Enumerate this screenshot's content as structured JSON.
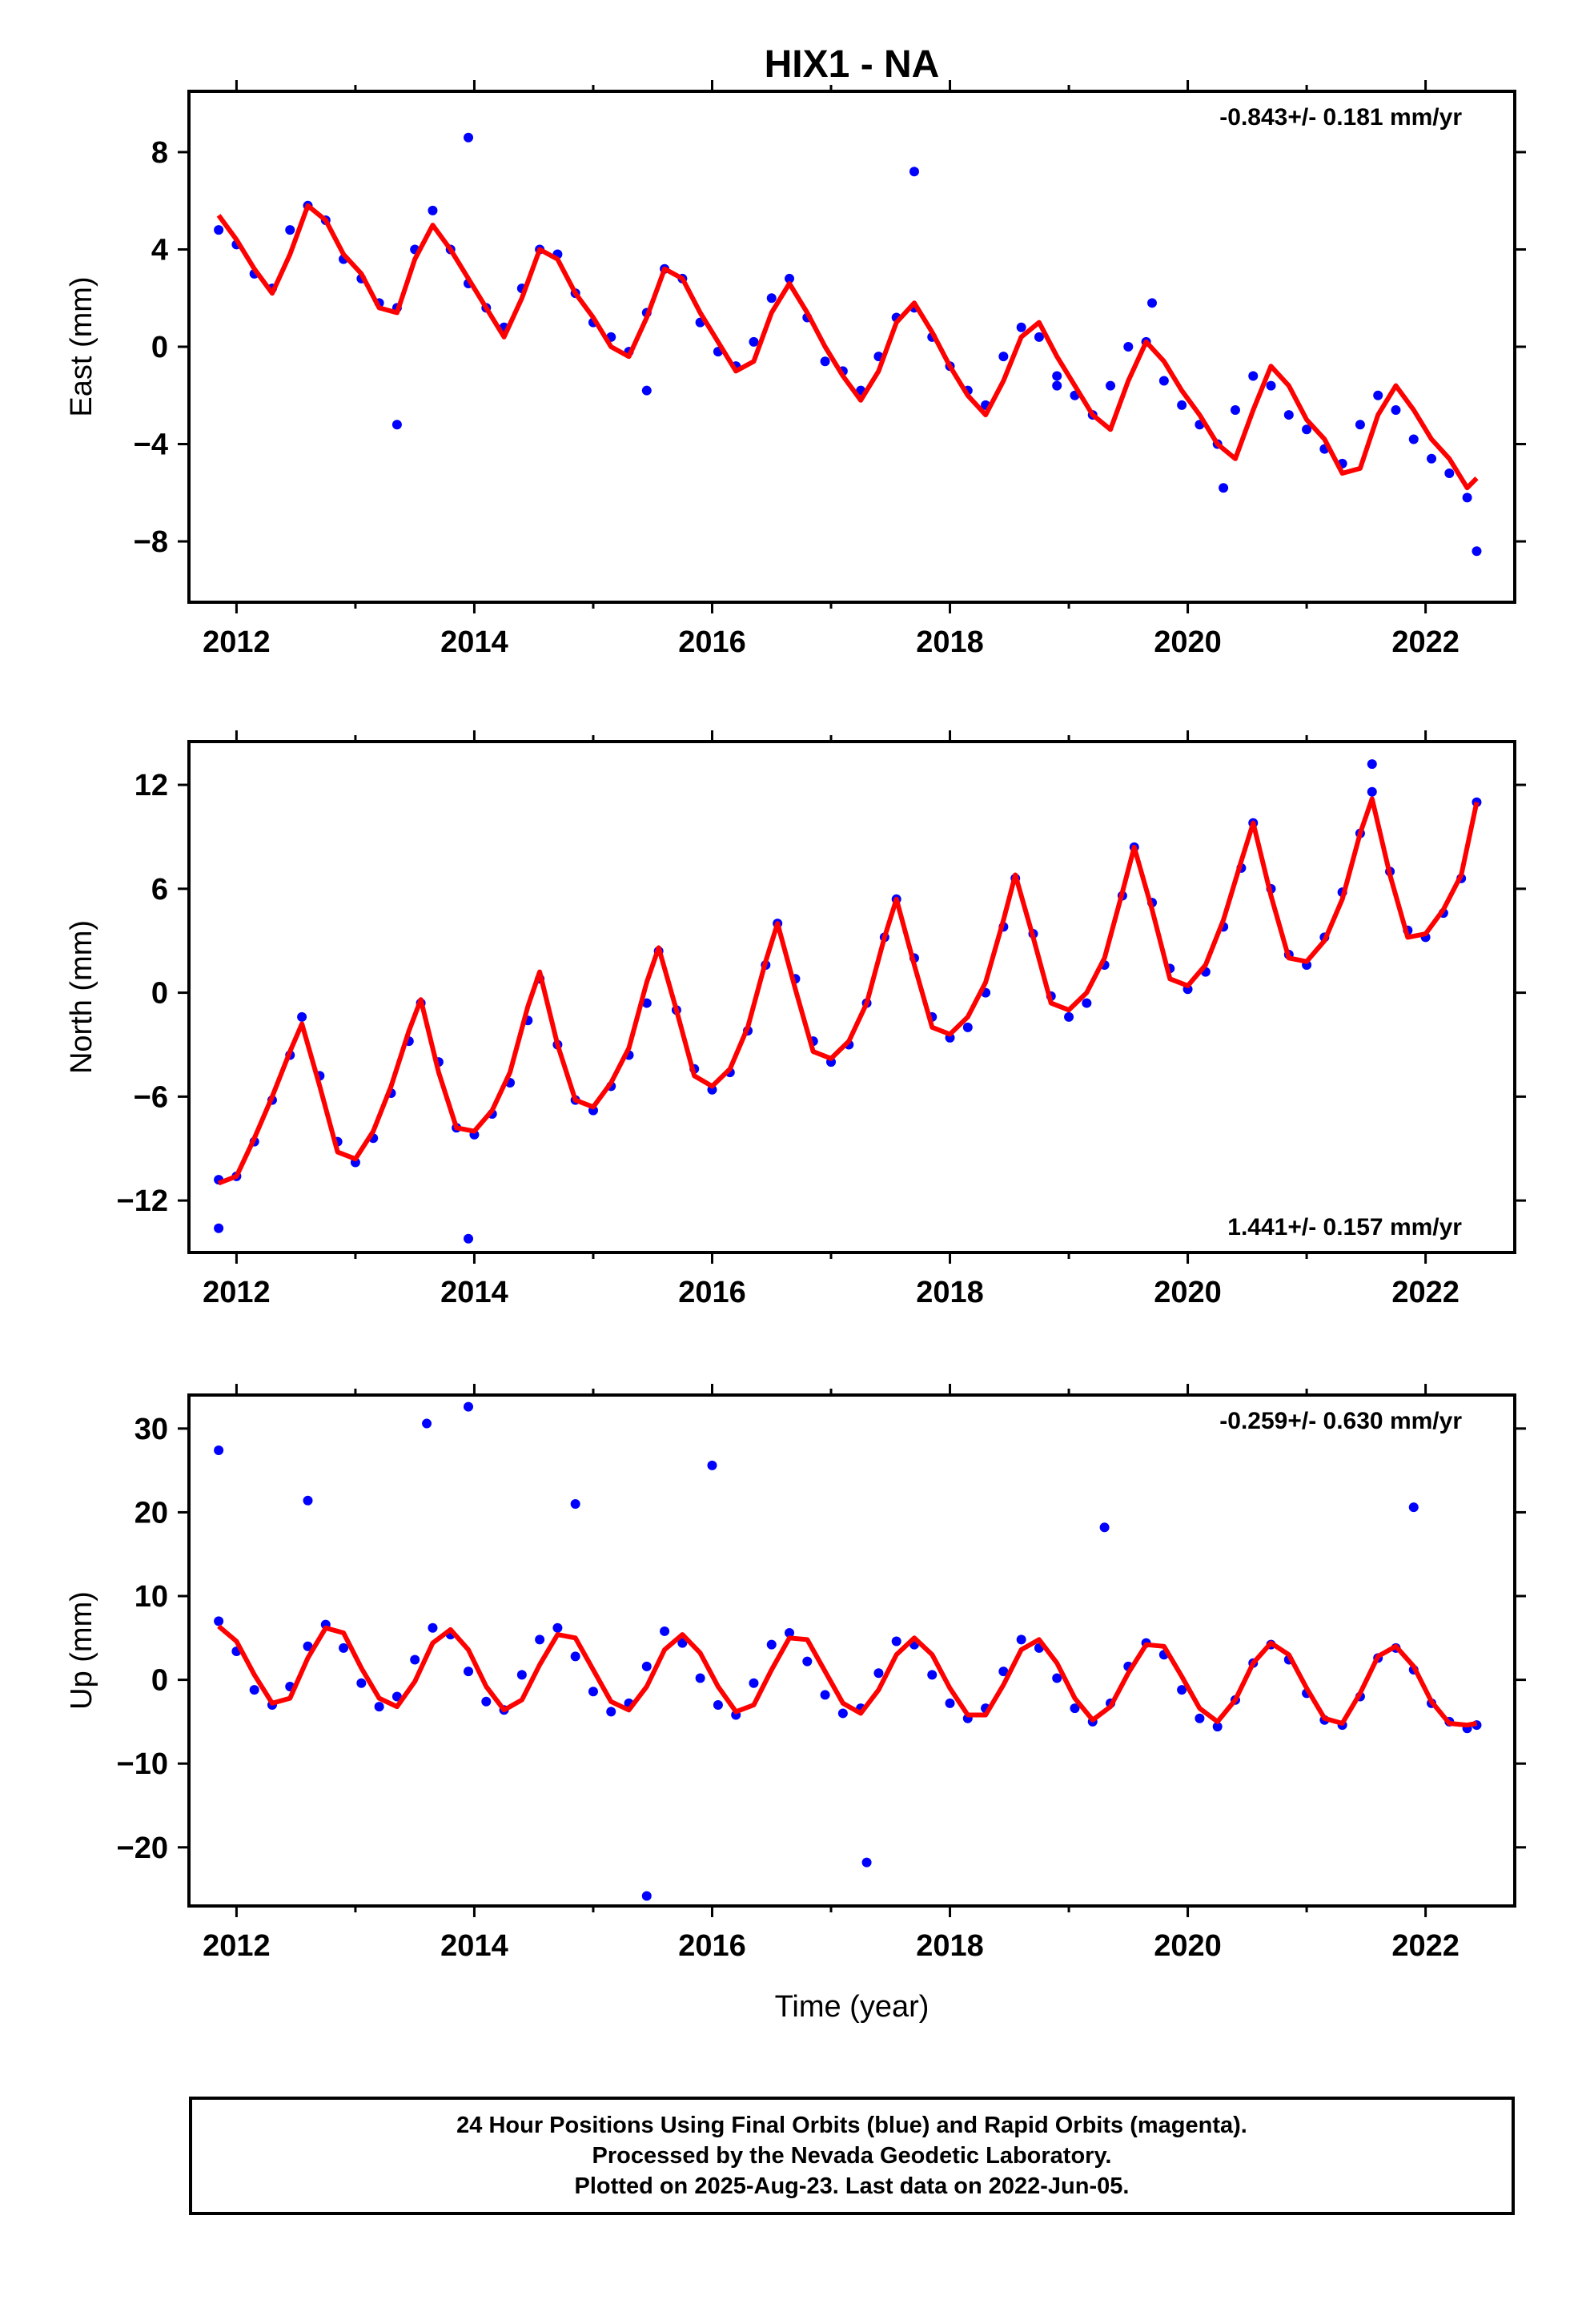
{
  "figure": {
    "title": "HIX1 - NA",
    "x_axis_label": "Time (year)"
  },
  "colors": {
    "data_points": "#0000ff",
    "model_fit": "#ff0000",
    "frame": "#000000"
  },
  "chart_data": [
    {
      "type": "scatter",
      "ylabel": "East (mm)",
      "annotation": "-0.843+/- 0.181 mm/yr",
      "annotation_position": "top-right",
      "xlim": [
        2011.6,
        2022.75
      ],
      "ylim": [
        -10.5,
        10.5
      ],
      "xticks": [
        2012,
        2014,
        2016,
        2018,
        2020,
        2022
      ],
      "yticks": [
        -8,
        -4,
        0,
        4,
        8
      ],
      "series": [
        {
          "marker": "dot",
          "x": [
            2011.85,
            2012.0,
            2012.15,
            2012.3,
            2012.45,
            2012.6,
            2012.75,
            2012.9,
            2013.05,
            2013.2,
            2013.35,
            2013.5,
            2013.65,
            2013.8,
            2013.95,
            2014.1,
            2014.25,
            2014.4,
            2014.55,
            2014.7,
            2014.85,
            2015.0,
            2015.15,
            2015.3,
            2015.45,
            2015.6,
            2015.75,
            2015.9,
            2016.05,
            2016.2,
            2016.35,
            2016.5,
            2016.65,
            2016.8,
            2016.95,
            2017.1,
            2017.25,
            2017.4,
            2017.55,
            2017.7,
            2017.85,
            2018.0,
            2018.15,
            2018.3,
            2018.45,
            2018.6,
            2018.75,
            2018.9,
            2019.05,
            2019.2,
            2019.35,
            2019.5,
            2019.65,
            2019.8,
            2019.95,
            2020.1,
            2020.25,
            2020.4,
            2020.55,
            2020.7,
            2020.85,
            2021.0,
            2021.15,
            2021.3,
            2021.45,
            2021.6,
            2021.75,
            2021.9,
            2022.05,
            2022.2,
            2022.35,
            2022.43,
            2013.35,
            2013.95,
            2017.7,
            2016.2,
            2018.9,
            2020.3,
            2015.45,
            2019.7
          ],
          "y": [
            4.8,
            4.2,
            3.0,
            2.4,
            4.8,
            5.8,
            5.2,
            3.6,
            2.8,
            1.8,
            1.6,
            4.0,
            5.6,
            4.0,
            2.6,
            1.6,
            0.8,
            2.4,
            4.0,
            3.8,
            2.2,
            1.0,
            0.4,
            -0.2,
            1.4,
            3.2,
            2.8,
            1.0,
            -0.2,
            -0.8,
            0.2,
            2.0,
            2.8,
            1.2,
            -0.6,
            -1.0,
            -1.8,
            -0.4,
            1.2,
            1.6,
            0.4,
            -0.8,
            -1.8,
            -2.4,
            -0.4,
            0.8,
            0.4,
            -1.2,
            -2.0,
            -2.8,
            -1.6,
            0.0,
            0.2,
            -1.4,
            -2.4,
            -3.2,
            -4.0,
            -2.6,
            -1.2,
            -1.6,
            -2.8,
            -3.4,
            -4.2,
            -4.8,
            -3.2,
            -2.0,
            -2.6,
            -3.8,
            -4.6,
            -5.2,
            -6.2,
            -8.4,
            -3.2,
            8.6,
            7.2,
            -0.8,
            -1.6,
            -5.8,
            -1.8,
            1.8
          ]
        },
        {
          "name": "fit",
          "x": [
            2011.85,
            2012.0,
            2012.15,
            2012.3,
            2012.45,
            2012.6,
            2012.75,
            2012.9,
            2013.05,
            2013.2,
            2013.35,
            2013.5,
            2013.65,
            2013.8,
            2013.95,
            2014.1,
            2014.25,
            2014.4,
            2014.55,
            2014.7,
            2014.85,
            2015.0,
            2015.15,
            2015.3,
            2015.45,
            2015.6,
            2015.75,
            2015.9,
            2016.05,
            2016.2,
            2016.35,
            2016.5,
            2016.65,
            2016.8,
            2016.95,
            2017.1,
            2017.25,
            2017.4,
            2017.55,
            2017.7,
            2017.85,
            2018.0,
            2018.15,
            2018.3,
            2018.45,
            2018.6,
            2018.75,
            2018.9,
            2019.05,
            2019.2,
            2019.35,
            2019.5,
            2019.65,
            2019.8,
            2019.95,
            2020.1,
            2020.25,
            2020.4,
            2020.55,
            2020.7,
            2020.85,
            2021.0,
            2021.15,
            2021.3,
            2021.45,
            2021.6,
            2021.75,
            2021.9,
            2022.05,
            2022.2,
            2022.35,
            2022.43
          ],
          "y": [
            5.4,
            4.4,
            3.2,
            2.2,
            3.8,
            5.8,
            5.2,
            3.8,
            3.0,
            1.6,
            1.4,
            3.6,
            5.0,
            4.0,
            2.8,
            1.6,
            0.4,
            2.0,
            4.0,
            3.6,
            2.2,
            1.2,
            0.0,
            -0.4,
            1.2,
            3.2,
            2.8,
            1.4,
            0.2,
            -1.0,
            -0.6,
            1.4,
            2.6,
            1.4,
            0.0,
            -1.2,
            -2.2,
            -1.0,
            1.0,
            1.8,
            0.6,
            -0.8,
            -2.0,
            -2.8,
            -1.4,
            0.4,
            1.0,
            -0.4,
            -1.6,
            -2.8,
            -3.4,
            -1.4,
            0.2,
            -0.6,
            -1.8,
            -2.8,
            -4.0,
            -4.6,
            -2.6,
            -0.8,
            -1.6,
            -3.0,
            -3.8,
            -5.2,
            -5.0,
            -2.8,
            -1.6,
            -2.6,
            -3.8,
            -4.6,
            -5.8,
            -5.4
          ]
        }
      ]
    },
    {
      "type": "scatter",
      "ylabel": "North (mm)",
      "annotation": "1.441+/- 0.157 mm/yr",
      "annotation_position": "bottom-right",
      "xlim": [
        2011.6,
        2022.75
      ],
      "ylim": [
        -15,
        14.5
      ],
      "xticks": [
        2012,
        2014,
        2016,
        2018,
        2020,
        2022
      ],
      "yticks": [
        -12,
        -6,
        0,
        6,
        12
      ],
      "series": [
        {
          "marker": "dot",
          "x": [
            2011.85,
            2012.0,
            2012.15,
            2012.3,
            2012.45,
            2012.55,
            2012.7,
            2012.85,
            2013.0,
            2013.15,
            2013.3,
            2013.45,
            2013.55,
            2013.7,
            2013.85,
            2014.0,
            2014.15,
            2014.3,
            2014.45,
            2014.55,
            2014.7,
            2014.85,
            2015.0,
            2015.15,
            2015.3,
            2015.45,
            2015.55,
            2015.7,
            2015.85,
            2016.0,
            2016.15,
            2016.3,
            2016.45,
            2016.55,
            2016.7,
            2016.85,
            2017.0,
            2017.15,
            2017.3,
            2017.45,
            2017.55,
            2017.7,
            2017.85,
            2018.0,
            2018.15,
            2018.3,
            2018.45,
            2018.55,
            2018.7,
            2018.85,
            2019.0,
            2019.15,
            2019.3,
            2019.45,
            2019.55,
            2019.7,
            2019.85,
            2020.0,
            2020.15,
            2020.3,
            2020.45,
            2020.55,
            2020.7,
            2020.85,
            2021.0,
            2021.15,
            2021.3,
            2021.45,
            2021.55,
            2021.7,
            2021.85,
            2022.0,
            2022.15,
            2022.3,
            2022.43,
            2011.85,
            2013.95,
            2021.55
          ],
          "y": [
            -10.8,
            -10.6,
            -8.6,
            -6.2,
            -3.6,
            -1.4,
            -4.8,
            -8.6,
            -9.8,
            -8.4,
            -5.8,
            -2.8,
            -0.6,
            -4.0,
            -7.8,
            -8.2,
            -7.0,
            -5.2,
            -1.6,
            0.8,
            -3.0,
            -6.2,
            -6.8,
            -5.4,
            -3.6,
            -0.6,
            2.4,
            -1.0,
            -4.4,
            -5.6,
            -4.6,
            -2.2,
            1.6,
            4.0,
            0.8,
            -2.8,
            -4.0,
            -3.0,
            -0.6,
            3.2,
            5.4,
            2.0,
            -1.4,
            -2.6,
            -2.0,
            0.0,
            3.8,
            6.6,
            3.4,
            -0.2,
            -1.4,
            -0.6,
            1.6,
            5.6,
            8.4,
            5.2,
            1.4,
            0.2,
            1.2,
            3.8,
            7.2,
            9.8,
            6.0,
            2.2,
            1.6,
            3.2,
            5.8,
            9.2,
            11.6,
            7.0,
            3.6,
            3.2,
            4.6,
            6.6,
            11.0,
            -13.6,
            -14.2,
            13.2
          ]
        },
        {
          "name": "fit",
          "x": [
            2011.85,
            2012.0,
            2012.15,
            2012.3,
            2012.45,
            2012.55,
            2012.7,
            2012.85,
            2013.0,
            2013.15,
            2013.3,
            2013.45,
            2013.55,
            2013.7,
            2013.85,
            2014.0,
            2014.15,
            2014.3,
            2014.45,
            2014.55,
            2014.7,
            2014.85,
            2015.0,
            2015.15,
            2015.3,
            2015.45,
            2015.55,
            2015.7,
            2015.85,
            2016.0,
            2016.15,
            2016.3,
            2016.45,
            2016.55,
            2016.7,
            2016.85,
            2017.0,
            2017.15,
            2017.3,
            2017.45,
            2017.55,
            2017.7,
            2017.85,
            2018.0,
            2018.15,
            2018.3,
            2018.45,
            2018.55,
            2018.7,
            2018.85,
            2019.0,
            2019.15,
            2019.3,
            2019.45,
            2019.55,
            2019.7,
            2019.85,
            2020.0,
            2020.15,
            2020.3,
            2020.45,
            2020.55,
            2020.7,
            2020.85,
            2021.0,
            2021.15,
            2021.3,
            2021.45,
            2021.55,
            2021.7,
            2021.85,
            2022.0,
            2022.15,
            2022.3,
            2022.43
          ],
          "y": [
            -11.0,
            -10.6,
            -8.4,
            -6.0,
            -3.4,
            -1.8,
            -5.4,
            -9.2,
            -9.6,
            -8.0,
            -5.4,
            -2.2,
            -0.4,
            -4.6,
            -7.8,
            -8.0,
            -6.8,
            -4.6,
            -0.8,
            1.2,
            -3.0,
            -6.2,
            -6.6,
            -5.2,
            -3.2,
            0.6,
            2.6,
            -1.0,
            -4.8,
            -5.4,
            -4.4,
            -2.0,
            1.8,
            4.0,
            0.2,
            -3.4,
            -3.8,
            -2.8,
            -0.6,
            3.2,
            5.4,
            1.6,
            -2.0,
            -2.4,
            -1.4,
            0.6,
            4.2,
            6.8,
            3.2,
            -0.6,
            -1.0,
            0.0,
            2.0,
            5.8,
            8.4,
            4.8,
            0.8,
            0.4,
            1.6,
            4.2,
            7.6,
            9.8,
            5.6,
            2.0,
            1.8,
            3.0,
            5.4,
            9.2,
            11.2,
            6.8,
            3.2,
            3.4,
            4.8,
            6.8,
            11.0
          ]
        }
      ]
    },
    {
      "type": "scatter",
      "ylabel": "Up (mm)",
      "annotation": "-0.259+/- 0.630 mm/yr",
      "annotation_position": "top-right",
      "xlim": [
        2011.6,
        2022.75
      ],
      "ylim": [
        -27,
        34
      ],
      "xticks": [
        2012,
        2014,
        2016,
        2018,
        2020,
        2022
      ],
      "yticks": [
        -20,
        -10,
        0,
        10,
        20,
        30
      ],
      "series": [
        {
          "marker": "dot",
          "x": [
            2011.85,
            2012.0,
            2012.15,
            2012.3,
            2012.45,
            2012.6,
            2012.75,
            2012.9,
            2013.05,
            2013.2,
            2013.35,
            2013.5,
            2013.65,
            2013.8,
            2013.95,
            2014.1,
            2014.25,
            2014.4,
            2014.55,
            2014.7,
            2014.85,
            2015.0,
            2015.15,
            2015.3,
            2015.45,
            2015.6,
            2015.75,
            2015.9,
            2016.05,
            2016.2,
            2016.35,
            2016.5,
            2016.65,
            2016.8,
            2016.95,
            2017.1,
            2017.25,
            2017.4,
            2017.55,
            2017.7,
            2017.85,
            2018.0,
            2018.15,
            2018.3,
            2018.45,
            2018.6,
            2018.75,
            2018.9,
            2019.05,
            2019.2,
            2019.35,
            2019.5,
            2019.65,
            2019.8,
            2019.95,
            2020.1,
            2020.25,
            2020.4,
            2020.55,
            2020.7,
            2020.85,
            2021.0,
            2021.15,
            2021.3,
            2021.45,
            2021.6,
            2021.75,
            2021.9,
            2022.05,
            2022.2,
            2022.35,
            2022.43,
            2013.6,
            2013.95,
            2015.45,
            2017.3,
            2016.0,
            2012.6,
            2019.3,
            2021.9,
            2011.85,
            2014.85
          ],
          "y": [
            7.0,
            3.4,
            -1.2,
            -3.0,
            -0.8,
            4.0,
            6.6,
            3.8,
            -0.4,
            -3.2,
            -2.0,
            2.4,
            6.2,
            5.4,
            1.0,
            -2.6,
            -3.6,
            0.6,
            4.8,
            6.2,
            2.8,
            -1.4,
            -3.8,
            -2.8,
            1.6,
            5.8,
            4.4,
            0.2,
            -3.0,
            -4.2,
            -0.4,
            4.2,
            5.6,
            2.2,
            -1.8,
            -4.0,
            -3.4,
            0.8,
            4.6,
            4.2,
            0.6,
            -2.8,
            -4.6,
            -3.4,
            1.0,
            4.8,
            3.8,
            0.2,
            -3.4,
            -5.0,
            -2.8,
            1.6,
            4.4,
            3.0,
            -1.2,
            -4.6,
            -5.6,
            -2.4,
            2.0,
            4.2,
            2.4,
            -1.6,
            -4.8,
            -5.4,
            -2.0,
            2.6,
            3.8,
            1.2,
            -2.8,
            -5.0,
            -5.8,
            -5.4,
            30.6,
            32.6,
            -25.8,
            -21.8,
            25.6,
            21.4,
            18.2,
            20.6,
            27.4,
            21.0
          ]
        },
        {
          "name": "fit",
          "x": [
            2011.85,
            2012.0,
            2012.15,
            2012.3,
            2012.45,
            2012.6,
            2012.75,
            2012.9,
            2013.05,
            2013.2,
            2013.35,
            2013.5,
            2013.65,
            2013.8,
            2013.95,
            2014.1,
            2014.25,
            2014.4,
            2014.55,
            2014.7,
            2014.85,
            2015.0,
            2015.15,
            2015.3,
            2015.45,
            2015.6,
            2015.75,
            2015.9,
            2016.05,
            2016.2,
            2016.35,
            2016.5,
            2016.65,
            2016.8,
            2016.95,
            2017.1,
            2017.25,
            2017.4,
            2017.55,
            2017.7,
            2017.85,
            2018.0,
            2018.15,
            2018.3,
            2018.45,
            2018.6,
            2018.75,
            2018.9,
            2019.05,
            2019.2,
            2019.35,
            2019.5,
            2019.65,
            2019.8,
            2019.95,
            2020.1,
            2020.25,
            2020.4,
            2020.55,
            2020.7,
            2020.85,
            2021.0,
            2021.15,
            2021.3,
            2021.45,
            2021.6,
            2021.75,
            2021.9,
            2022.05,
            2022.2,
            2022.35,
            2022.43
          ],
          "y": [
            6.4,
            4.6,
            0.6,
            -2.8,
            -2.2,
            2.6,
            6.2,
            5.6,
            1.4,
            -2.2,
            -3.2,
            -0.2,
            4.4,
            6.0,
            3.6,
            -0.8,
            -3.6,
            -2.4,
            1.8,
            5.4,
            5.0,
            1.2,
            -2.6,
            -3.6,
            -0.8,
            3.6,
            5.4,
            3.2,
            -0.8,
            -3.8,
            -3.0,
            1.2,
            5.0,
            4.8,
            1.0,
            -2.8,
            -4.0,
            -1.2,
            3.0,
            5.0,
            3.0,
            -1.0,
            -4.2,
            -4.2,
            -0.6,
            3.6,
            4.8,
            2.0,
            -2.2,
            -4.8,
            -3.2,
            0.8,
            4.2,
            4.0,
            0.4,
            -3.4,
            -5.0,
            -2.4,
            2.0,
            4.4,
            3.0,
            -1.0,
            -4.6,
            -5.2,
            -1.6,
            2.8,
            4.0,
            1.6,
            -2.6,
            -5.2,
            -5.4,
            -5.2
          ]
        }
      ]
    }
  ],
  "footer": {
    "line1": "24 Hour Positions Using Final Orbits (blue) and Rapid Orbits (magenta).",
    "line2": "Processed by the Nevada Geodetic Laboratory.",
    "line3": "Plotted on 2025-Aug-23. Last data on 2022-Jun-05."
  }
}
